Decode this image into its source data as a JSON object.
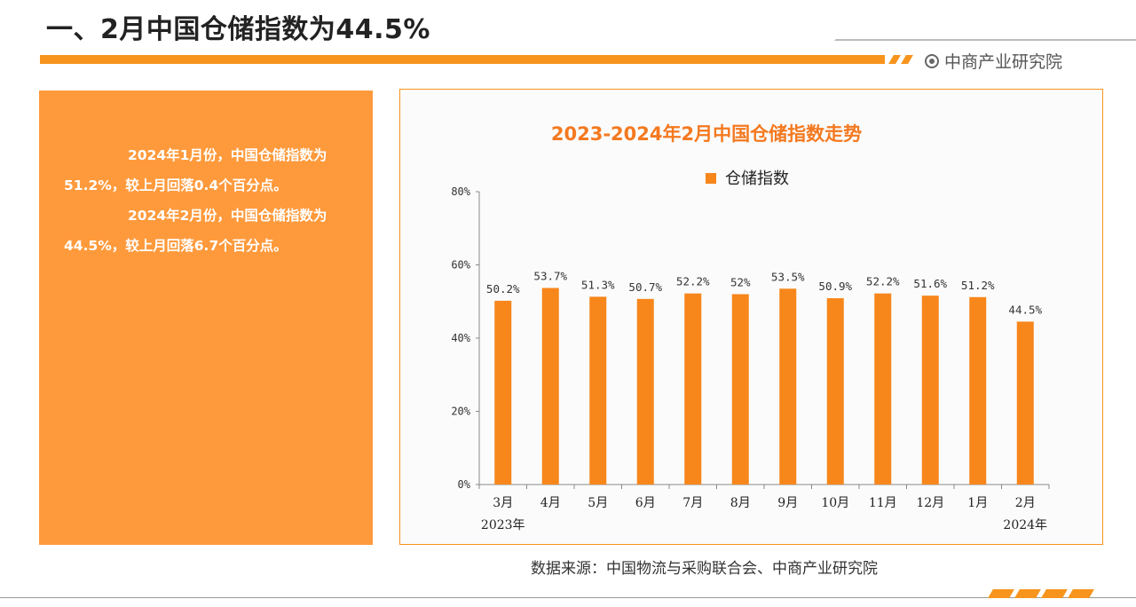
{
  "header": {
    "title": "一、2月中国仓储指数为44.5%",
    "brand": "中商产业研究院"
  },
  "text_panel": {
    "paragraph1": "2024年1月份，中国仓储指数为51.2%，较上月回落0.4个百分点。",
    "paragraph2": "2024年2月份，中国仓储指数为44.5%，较上月回落6.7个百分点。"
  },
  "source": "数据来源：中国物流与采购联合会、中商产业研究院",
  "colors": {
    "accent": "#f7941d",
    "panel": "#ff9a3c",
    "bar": "#f7861b",
    "chart_title": "#f47920"
  },
  "chart_data": {
    "type": "bar",
    "title": "2023-2024年2月中国仓储指数走势",
    "categories": [
      "3月",
      "4月",
      "5月",
      "6月",
      "7月",
      "8月",
      "9月",
      "10月",
      "11月",
      "12月",
      "1月",
      "2月"
    ],
    "year_labels": {
      "first": "2023年",
      "last": "2024年"
    },
    "series": [
      {
        "name": "仓储指数",
        "values": [
          50.2,
          53.7,
          51.3,
          50.7,
          52.2,
          52,
          53.5,
          50.9,
          52.2,
          51.6,
          51.2,
          44.5
        ],
        "labels": [
          "50.2%",
          "53.7%",
          "51.3%",
          "50.7%",
          "52.2%",
          "52%",
          "53.5%",
          "50.9%",
          "52.2%",
          "51.6%",
          "51.2%",
          "44.5%"
        ]
      }
    ],
    "yticks": [
      "0%",
      "20%",
      "40%",
      "60%",
      "80%"
    ],
    "ylim": [
      0,
      80
    ],
    "grid": false,
    "legend": "top-center"
  }
}
